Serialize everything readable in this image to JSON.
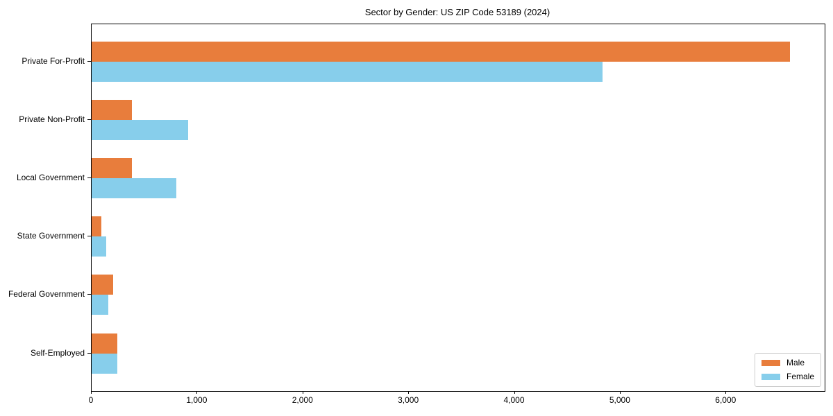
{
  "title": "Sector by Gender: US ZIP Code 53189 (2024)",
  "colors": {
    "male": "#E87D3C",
    "female": "#87CEEB",
    "spine": "#000000",
    "legend_border": "#cccccc"
  },
  "legend": {
    "items": [
      "Male",
      "Female"
    ],
    "position": "lower right"
  },
  "chart_data": {
    "type": "bar",
    "orientation": "horizontal",
    "title": "Sector by Gender: US ZIP Code 53189 (2024)",
    "xlabel": "",
    "ylabel": "",
    "categories": [
      "Private For-Profit",
      "Private Non-Profit",
      "Local Government",
      "State Government",
      "Federal Government",
      "Self-Employed"
    ],
    "series": [
      {
        "name": "Male",
        "color": "#E87D3C",
        "values": [
          6600,
          380,
          380,
          90,
          205,
          245
        ]
      },
      {
        "name": "Female",
        "color": "#87CEEB",
        "values": [
          4830,
          910,
          800,
          140,
          160,
          240
        ]
      }
    ],
    "xlim": [
      0,
      6930
    ],
    "xticks": [
      0,
      1000,
      2000,
      3000,
      4000,
      5000,
      6000
    ],
    "xtick_labels": [
      "0",
      "1,000",
      "2,000",
      "3,000",
      "4,000",
      "5,000",
      "6,000"
    ],
    "grid": false,
    "legend_position": "lower right"
  }
}
